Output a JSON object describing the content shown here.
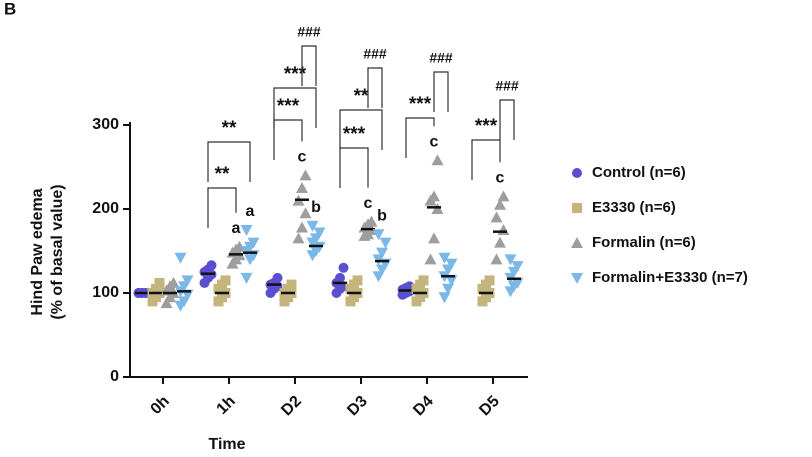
{
  "chart_data": {
    "type": "dot",
    "panel": "B",
    "x_label": "Time",
    "y_label": [
      "Hind Paw edema",
      "(% of basal value)"
    ],
    "categories": [
      "0h",
      "1h",
      "D2",
      "D3",
      "D4",
      "D5"
    ],
    "ylim": [
      0,
      300
    ],
    "yticks": [
      0,
      100,
      200,
      300
    ],
    "series": [
      {
        "name": "Control (n=6)",
        "color": "#5a4fcf",
        "marker": "circle",
        "values": [
          100,
          123,
          110,
          112,
          103,
          null
        ],
        "points": [
          [
            100,
            100,
            100,
            100,
            100,
            100
          ],
          [
            112,
            118,
            122,
            125,
            128,
            133
          ],
          [
            100,
            105,
            108,
            110,
            112,
            118
          ],
          [
            100,
            105,
            108,
            112,
            118,
            130
          ],
          [
            98,
            100,
            102,
            104,
            106,
            108
          ],
          []
        ]
      },
      {
        "name": "E3330 (n=6)",
        "color": "#c4b47e",
        "marker": "square",
        "values": [
          100,
          100,
          100,
          100,
          100,
          100
        ],
        "points": [
          [
            90,
            95,
            100,
            100,
            105,
            112
          ],
          [
            90,
            95,
            100,
            105,
            110,
            115
          ],
          [
            90,
            95,
            100,
            100,
            105,
            110
          ],
          [
            90,
            95,
            100,
            105,
            110,
            115
          ],
          [
            90,
            95,
            100,
            105,
            110,
            115
          ],
          [
            90,
            95,
            100,
            105,
            110,
            115
          ]
        ]
      },
      {
        "name": "Formalin (n=6)",
        "color": "#9e9e9e",
        "marker": "triangle-up",
        "values": [
          100,
          146,
          211,
          176,
          202,
          173
        ],
        "points": [
          [
            88,
            95,
            100,
            103,
            108,
            112
          ],
          [
            135,
            140,
            145,
            148,
            152,
            155
          ],
          [
            165,
            178,
            195,
            210,
            225,
            240
          ],
          [
            168,
            170,
            175,
            178,
            182,
            185
          ],
          [
            140,
            165,
            200,
            210,
            215,
            258
          ],
          [
            140,
            160,
            175,
            190,
            205,
            215
          ]
        ],
        "letters": [
          null,
          "a",
          "c",
          "c",
          "c",
          "c"
        ]
      },
      {
        "name": "Formalin+E3330 (n=7)",
        "color": "#7ab8e8",
        "marker": "triangle-down",
        "values": [
          102,
          148,
          156,
          138,
          120,
          117
        ],
        "points": [
          [
            85,
            90,
            98,
            102,
            108,
            115,
            142
          ],
          [
            118,
            140,
            145,
            150,
            155,
            160,
            175
          ],
          [
            145,
            150,
            155,
            160,
            165,
            172,
            180
          ],
          [
            120,
            128,
            135,
            140,
            148,
            160,
            170
          ],
          [
            95,
            105,
            115,
            120,
            128,
            135,
            142
          ],
          [
            102,
            108,
            112,
            118,
            125,
            132,
            140
          ]
        ],
        "letters": [
          null,
          "a",
          "b",
          "b",
          null,
          null
        ]
      }
    ],
    "control_vs_formalin": [
      null,
      "**",
      "***",
      "***",
      "***",
      "***"
    ],
    "control_vs_combination": [
      null,
      "**",
      "***",
      "**",
      null,
      null
    ],
    "formalin_vs_combination": [
      null,
      null,
      "###",
      "###",
      "###",
      "###"
    ]
  }
}
